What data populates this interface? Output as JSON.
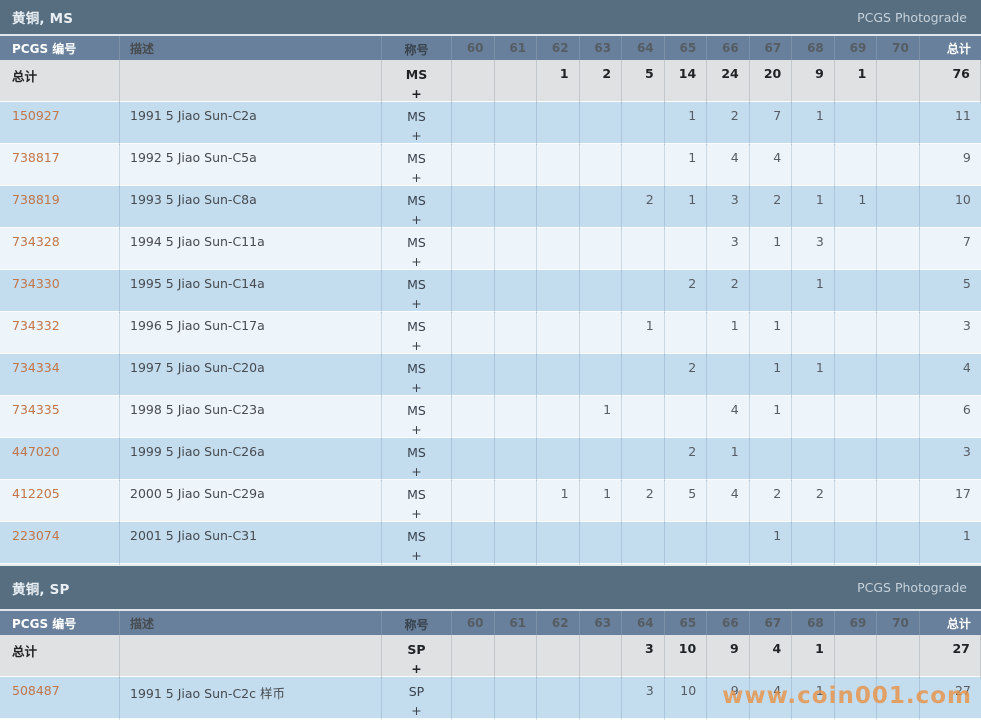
{
  "theme": {
    "band_bg": "#566e80",
    "header_bg": "#68809b",
    "row_blue": "#c3dcee",
    "row_light": "#eef5fa",
    "total_row_bg": "#dfe1e3",
    "link_color": "#c1764b",
    "watermark_color": "#e99244"
  },
  "watermark": {
    "text": "www.coin001.com"
  },
  "sections": [
    {
      "title": "黄铜, MS",
      "photograde_label": "PCGS Photograde",
      "columns": {
        "pcgs": "PCGS 编号",
        "desc": "描述",
        "designation": "称号",
        "grades": [
          "60",
          "61",
          "62",
          "63",
          "64",
          "65",
          "66",
          "67",
          "68",
          "69",
          "70"
        ],
        "total": "总计"
      },
      "total_row": {
        "label": "总计",
        "desc": "",
        "designation_top": "MS",
        "designation_plus": "+",
        "grades": [
          "",
          "",
          "1",
          "2",
          "5",
          "14",
          "24",
          "20",
          "9",
          "1",
          ""
        ],
        "total": "76"
      },
      "rows": [
        {
          "pcgs": "150927",
          "desc": "1991 5 Jiao Sun-C2a",
          "designation_top": "MS",
          "designation_plus": "+",
          "grades": [
            "",
            "",
            "",
            "",
            "",
            "1",
            "2",
            "7",
            "1",
            "",
            ""
          ],
          "total": "11"
        },
        {
          "pcgs": "738817",
          "desc": "1992 5 Jiao Sun-C5a",
          "designation_top": "MS",
          "designation_plus": "+",
          "grades": [
            "",
            "",
            "",
            "",
            "",
            "1",
            "4",
            "4",
            "",
            "",
            ""
          ],
          "total": "9"
        },
        {
          "pcgs": "738819",
          "desc": "1993 5 Jiao Sun-C8a",
          "designation_top": "MS",
          "designation_plus": "+",
          "grades": [
            "",
            "",
            "",
            "",
            "2",
            "1",
            "3",
            "2",
            "1",
            "1",
            ""
          ],
          "total": "10"
        },
        {
          "pcgs": "734328",
          "desc": "1994 5 Jiao Sun-C11a",
          "designation_top": "MS",
          "designation_plus": "+",
          "grades": [
            "",
            "",
            "",
            "",
            "",
            "",
            "3",
            "1",
            "3",
            "",
            ""
          ],
          "total": "7"
        },
        {
          "pcgs": "734330",
          "desc": "1995 5 Jiao Sun-C14a",
          "designation_top": "MS",
          "designation_plus": "+",
          "grades": [
            "",
            "",
            "",
            "",
            "",
            "2",
            "2",
            "",
            "1",
            "",
            ""
          ],
          "total": "5"
        },
        {
          "pcgs": "734332",
          "desc": "1996 5 Jiao Sun-C17a",
          "designation_top": "MS",
          "designation_plus": "+",
          "grades": [
            "",
            "",
            "",
            "",
            "1",
            "",
            "1",
            "1",
            "",
            "",
            ""
          ],
          "total": "3"
        },
        {
          "pcgs": "734334",
          "desc": "1997 5 Jiao Sun-C20a",
          "designation_top": "MS",
          "designation_plus": "+",
          "grades": [
            "",
            "",
            "",
            "",
            "",
            "2",
            "",
            "1",
            "1",
            "",
            ""
          ],
          "total": "4"
        },
        {
          "pcgs": "734335",
          "desc": "1998 5 Jiao Sun-C23a",
          "designation_top": "MS",
          "designation_plus": "+",
          "grades": [
            "",
            "",
            "",
            "1",
            "",
            "",
            "4",
            "1",
            "",
            "",
            ""
          ],
          "total": "6"
        },
        {
          "pcgs": "447020",
          "desc": "1999 5 Jiao Sun-C26a",
          "designation_top": "MS",
          "designation_plus": "+",
          "grades": [
            "",
            "",
            "",
            "",
            "",
            "2",
            "1",
            "",
            "",
            "",
            ""
          ],
          "total": "3"
        },
        {
          "pcgs": "412205",
          "desc": "2000 5 Jiao Sun-C29a",
          "designation_top": "MS",
          "designation_plus": "+",
          "grades": [
            "",
            "",
            "1",
            "1",
            "2",
            "5",
            "4",
            "2",
            "2",
            "",
            ""
          ],
          "total": "17"
        },
        {
          "pcgs": "223074",
          "desc": "2001 5 Jiao Sun-C31",
          "designation_top": "MS",
          "designation_plus": "+",
          "grades": [
            "",
            "",
            "",
            "",
            "",
            "",
            "",
            "1",
            "",
            "",
            ""
          ],
          "total": "1"
        }
      ]
    },
    {
      "title": "黄铜, SP",
      "photograde_label": "PCGS Photograde",
      "columns": {
        "pcgs": "PCGS 编号",
        "desc": "描述",
        "designation": "称号",
        "grades": [
          "60",
          "61",
          "62",
          "63",
          "64",
          "65",
          "66",
          "67",
          "68",
          "69",
          "70"
        ],
        "total": "总计"
      },
      "total_row": {
        "label": "总计",
        "desc": "",
        "designation_top": "SP",
        "designation_plus": "+",
        "grades": [
          "",
          "",
          "",
          "",
          "3",
          "10",
          "9",
          "4",
          "1",
          "",
          ""
        ],
        "total": "27"
      },
      "rows": [
        {
          "pcgs": "508487",
          "desc": "1991 5 Jiao Sun-C2c 样币",
          "designation_top": "SP",
          "designation_plus": "+",
          "grades": [
            "",
            "",
            "",
            "",
            "3",
            "10",
            "9",
            "4",
            "1",
            "",
            ""
          ],
          "total": "27"
        }
      ]
    }
  ]
}
